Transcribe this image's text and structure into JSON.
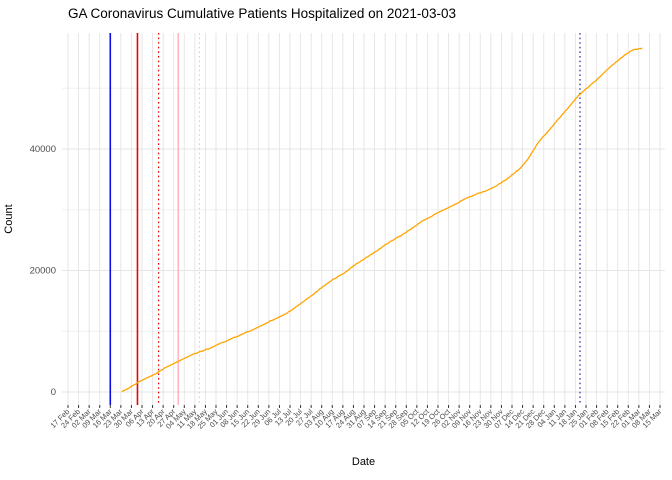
{
  "chart_data": {
    "type": "line",
    "title": "GA Coronavirus Cumulative Patients Hospitalized on 2021-03-03",
    "xlabel": "Date",
    "ylabel": "Count",
    "grid": true,
    "legend": "none",
    "panel_background": "#ffffff",
    "gridline_color": "#e6e6e6",
    "minor_gridline_color": "#f0f0f0",
    "tick_text_color": "#4d4d4d",
    "x_axis": {
      "start_date": "2020-02-17",
      "end_date": "2021-03-15",
      "tick_interval_days": 7,
      "tick_labels": [
        "17 Feb",
        "24 Feb",
        "02 Mar",
        "09 Mar",
        "16 Mar",
        "23 Mar",
        "30 Mar",
        "06 Apr",
        "13 Apr",
        "20 Apr",
        "27 Apr",
        "04 May",
        "11 May",
        "18 May",
        "25 May",
        "01 Jun",
        "08 Jun",
        "15 Jun",
        "22 Jun",
        "29 Jun",
        "06 Jul",
        "13 Jul",
        "20 Jul",
        "27 Jul",
        "03 Aug",
        "10 Aug",
        "17 Aug",
        "24 Aug",
        "31 Aug",
        "07 Sep",
        "14 Sep",
        "21 Sep",
        "28 Sep",
        "05 Oct",
        "12 Oct",
        "19 Oct",
        "26 Oct",
        "02 Nov",
        "09 Nov",
        "16 Nov",
        "23 Nov",
        "30 Nov",
        "07 Dec",
        "14 Dec",
        "21 Dec",
        "28 Dec",
        "04 Jan",
        "11 Jan",
        "18 Jan",
        "25 Jan",
        "01 Feb",
        "08 Feb",
        "15 Feb",
        "22 Feb",
        "01 Mar",
        "08 Mar",
        "15 Mar"
      ]
    },
    "y_axis": {
      "ticks": [
        0,
        20000,
        40000
      ],
      "tick_labels": [
        "0",
        "20000",
        "40000"
      ],
      "minor_ticks": [
        10000,
        30000,
        50000
      ],
      "ylim": [
        0,
        59000
      ]
    },
    "series": [
      {
        "name": "cumulative-patients-hospitalized",
        "color": "#FFA500",
        "dates": [
          "2020-03-24",
          "2020-03-28",
          "2020-04-03",
          "2020-04-10",
          "2020-04-17",
          "2020-04-23",
          "2020-04-30",
          "2020-05-06",
          "2020-05-14",
          "2020-05-21",
          "2020-05-27",
          "2020-06-03",
          "2020-06-10",
          "2020-06-16",
          "2020-06-23",
          "2020-06-30",
          "2020-07-06",
          "2020-07-13",
          "2020-07-19",
          "2020-07-26",
          "2020-08-04",
          "2020-08-11",
          "2020-08-18",
          "2020-08-26",
          "2020-09-02",
          "2020-09-10",
          "2020-09-17",
          "2020-09-24",
          "2020-10-01",
          "2020-10-09",
          "2020-10-16",
          "2020-10-23",
          "2020-10-31",
          "2020-11-07",
          "2020-11-15",
          "2020-11-22",
          "2020-11-29",
          "2020-12-05",
          "2020-12-12",
          "2020-12-18",
          "2020-12-25",
          "2021-01-01",
          "2021-01-07",
          "2021-01-14",
          "2021-01-20",
          "2021-01-27",
          "2021-02-03",
          "2021-02-09",
          "2021-02-16",
          "2021-02-21",
          "2021-02-25",
          "2021-03-03"
        ],
        "values": [
          150,
          600,
          1500,
          2400,
          3300,
          4200,
          5000,
          5800,
          6600,
          7200,
          7900,
          8600,
          9400,
          10000,
          10800,
          11700,
          12300,
          13300,
          14400,
          15600,
          17400,
          18600,
          19600,
          21100,
          22200,
          23500,
          24700,
          25700,
          26800,
          28200,
          29100,
          30000,
          31000,
          31900,
          32700,
          33300,
          34300,
          35300,
          36700,
          38500,
          41300,
          43200,
          45000,
          47000,
          48800,
          50300,
          51800,
          53300,
          54700,
          55700,
          56300,
          56600
        ]
      }
    ],
    "vlines": [
      {
        "name": "vline-blue-solid",
        "date": "2020-03-16",
        "color": "#0E0EE6",
        "style": "solid"
      },
      {
        "name": "vline-red-solid",
        "date": "2020-04-03",
        "color": "#EE0000",
        "style": "solid"
      },
      {
        "name": "vline-red-dotted",
        "date": "2020-04-17",
        "color": "#EE0000",
        "style": "dotted"
      },
      {
        "name": "vline-pink-solid",
        "date": "2020-04-30",
        "color": "#FFB6C1",
        "style": "solid"
      },
      {
        "name": "vline-pink-dotted",
        "date": "2020-05-14",
        "color": "#FFC0CB",
        "style": "dotted"
      },
      {
        "name": "vline-navy-dotted",
        "date": "2021-01-21",
        "color": "#2424AE",
        "style": "dotted"
      }
    ]
  }
}
